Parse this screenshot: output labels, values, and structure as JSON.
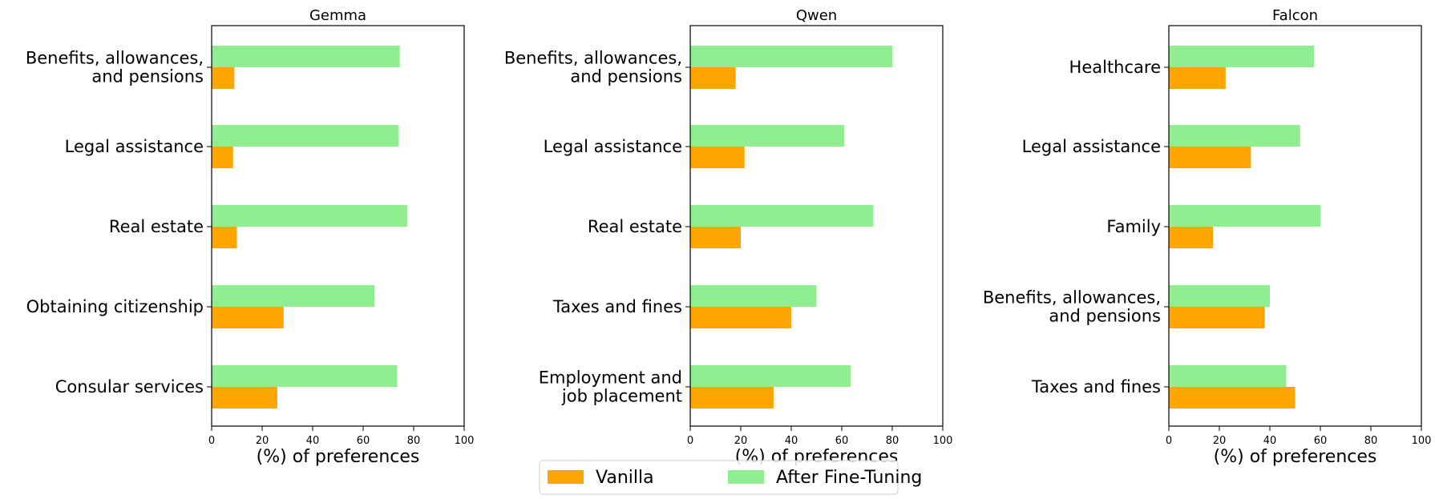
{
  "chart_data": [
    {
      "type": "bar",
      "orientation": "horizontal",
      "title": "Gemma",
      "xlabel": "(%) of preferences",
      "xlim": [
        0,
        100
      ],
      "xticks": [
        "0",
        "20",
        "40",
        "60",
        "80",
        "100"
      ],
      "categories": [
        [
          "Benefits, allowances,",
          "and pensions"
        ],
        [
          "Legal assistance"
        ],
        [
          "Real estate"
        ],
        [
          "Obtaining citizenship"
        ],
        [
          "Consular services"
        ]
      ],
      "series": [
        {
          "name": "Vanilla",
          "values": [
            9,
            8.5,
            10,
            28.5,
            26
          ]
        },
        {
          "name": "After Fine-Tuning",
          "values": [
            74.5,
            74,
            77.5,
            64.5,
            73.5
          ]
        }
      ]
    },
    {
      "type": "bar",
      "orientation": "horizontal",
      "title": "Qwen",
      "xlabel": "(%) of preferences",
      "xlim": [
        0,
        100
      ],
      "xticks": [
        "0",
        "20",
        "40",
        "60",
        "80",
        "100"
      ],
      "categories": [
        [
          "Benefits, allowances,",
          "and pensions"
        ],
        [
          "Legal assistance"
        ],
        [
          "Real estate"
        ],
        [
          "Taxes and fines"
        ],
        [
          "Employment and",
          "job placement"
        ]
      ],
      "series": [
        {
          "name": "Vanilla",
          "values": [
            18,
            21.5,
            20,
            40,
            33
          ]
        },
        {
          "name": "After Fine-Tuning",
          "values": [
            80,
            61,
            72.5,
            50,
            63.5
          ]
        }
      ]
    },
    {
      "type": "bar",
      "orientation": "horizontal",
      "title": "Falcon",
      "xlabel": "(%) of preferences",
      "xlim": [
        0,
        100
      ],
      "xticks": [
        "0",
        "20",
        "40",
        "60",
        "80",
        "100"
      ],
      "categories": [
        [
          "Healthcare"
        ],
        [
          "Legal assistance"
        ],
        [
          "Family"
        ],
        [
          "Benefits, allowances,",
          "and pensions"
        ],
        [
          "Taxes and fines"
        ]
      ],
      "series": [
        {
          "name": "Vanilla",
          "values": [
            22.5,
            32.5,
            17.5,
            38,
            50
          ]
        },
        {
          "name": "After Fine-Tuning",
          "values": [
            57.5,
            52,
            60,
            40,
            46.5
          ]
        }
      ]
    }
  ],
  "legend": {
    "placement": "bottom-center",
    "entries": [
      {
        "label": "Vanilla",
        "color": "#FFA500"
      },
      {
        "label": "After Fine-Tuning",
        "color": "#90EE90"
      }
    ]
  },
  "colors": {
    "vanilla": "#FFA500",
    "finetuned": "#90EE90"
  }
}
